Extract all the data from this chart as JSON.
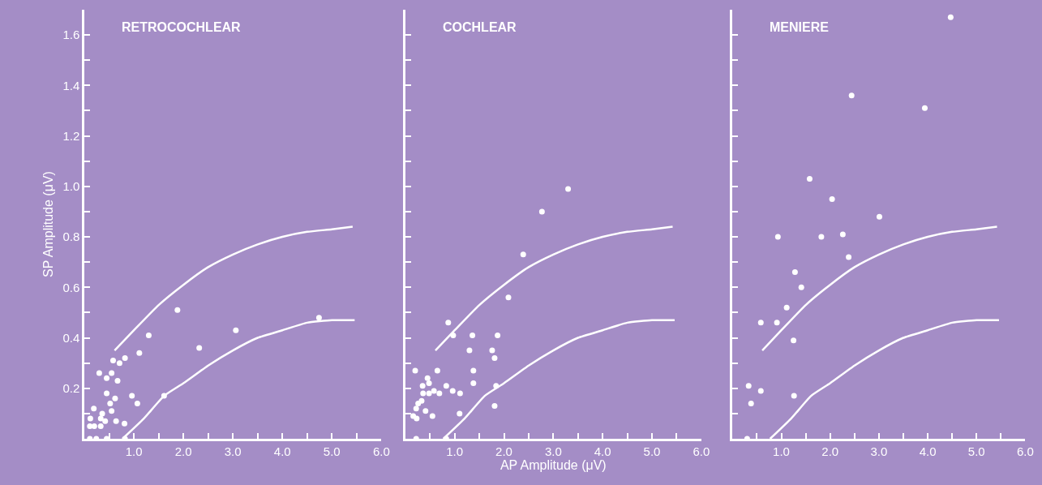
{
  "chart_data": [
    {
      "type": "scatter",
      "title": "RETROCOCHLEAR",
      "ylabel": "SP Amplitude (μV)",
      "xlim": [
        0,
        6.0
      ],
      "ylim": [
        0,
        1.7
      ],
      "grid": false,
      "xticks": [
        {
          "value": 0.5,
          "label": null
        },
        {
          "value": 1.0,
          "label": "1.0"
        },
        {
          "value": 1.5,
          "label": null
        },
        {
          "value": 2.0,
          "label": "2.0"
        },
        {
          "value": 2.5,
          "label": null
        },
        {
          "value": 3.0,
          "label": "3.0"
        },
        {
          "value": 3.5,
          "label": null
        },
        {
          "value": 4.0,
          "label": "4.0"
        },
        {
          "value": 4.5,
          "label": null
        },
        {
          "value": 5.0,
          "label": "5.0"
        },
        {
          "value": 5.5,
          "label": null
        },
        {
          "value": 6.0,
          "label": "6.0"
        }
      ],
      "yticks": [
        {
          "value": 0.1,
          "label": null
        },
        0.2,
        {
          "value": 0.3,
          "label": null
        },
        0.4,
        {
          "value": 0.5,
          "label": null
        },
        0.6,
        {
          "value": 0.7,
          "label": null
        },
        0.8,
        {
          "value": 0.9,
          "label": null
        },
        {
          "value": 1.0,
          "label": "1.0"
        },
        {
          "value": 1.1,
          "label": null
        },
        1.2,
        {
          "value": 1.3,
          "label": null
        },
        1.4,
        {
          "value": 1.5,
          "label": null
        },
        1.6
      ],
      "series": [
        {
          "marker": "circle",
          "color": "#ffffff",
          "x": [
            0.11,
            0.24,
            0.45,
            0.12,
            0.11,
            0.2,
            0.19,
            0.33,
            0.33,
            0.36,
            0.42,
            0.45,
            0.3,
            0.52,
            0.55,
            0.45,
            0.55,
            0.58,
            0.62,
            0.64,
            0.67,
            0.71,
            0.82,
            0.81,
            0.82,
            0.96,
            1.07,
            1.11,
            1.3,
            1.61,
            1.88,
            2.32,
            3.06,
            4.74
          ],
          "values": [
            0,
            0,
            0,
            0.08,
            0.05,
            0.05,
            0.12,
            0.05,
            0.08,
            0.1,
            0.07,
            0.18,
            0.26,
            0.14,
            0.11,
            0.24,
            0.26,
            0.31,
            0.16,
            0.07,
            0.23,
            0.3,
            0.32,
            0.06,
            0.0,
            0.17,
            0.14,
            0.34,
            0.41,
            0.17,
            0.51,
            0.36,
            0.43,
            0.48
          ]
        },
        {
          "type": "line",
          "color": "#ffffff",
          "x": [
            0.61,
            1.0,
            1.5,
            2.0,
            2.5,
            3.0,
            3.5,
            4.0,
            4.5,
            5.0,
            5.42
          ],
          "values": [
            0.35,
            0.43,
            0.53,
            0.61,
            0.68,
            0.73,
            0.77,
            0.8,
            0.82,
            0.83,
            0.84
          ]
        },
        {
          "type": "line",
          "color": "#ffffff",
          "x": [
            0.77,
            1.2,
            1.61,
            2.0,
            2.5,
            3.0,
            3.5,
            4.0,
            4.5,
            5.0,
            5.46
          ],
          "values": [
            0,
            0.08,
            0.17,
            0.22,
            0.29,
            0.35,
            0.4,
            0.43,
            0.46,
            0.47,
            0.47
          ]
        }
      ]
    },
    {
      "type": "scatter",
      "title": "COCHLEAR",
      "xlabel": "AP Amplitude (μV)",
      "xlim": [
        0,
        6.0
      ],
      "ylim": [
        0,
        1.7
      ],
      "grid": false,
      "tick_labels": "x",
      "xticks": [
        {
          "value": 0.5,
          "label": null
        },
        {
          "value": 1.0,
          "label": "1.0"
        },
        {
          "value": 1.5,
          "label": null
        },
        {
          "value": 2.0,
          "label": "2.0"
        },
        {
          "value": 2.5,
          "label": null
        },
        {
          "value": 3.0,
          "label": "3.0"
        },
        {
          "value": 3.5,
          "label": null
        },
        {
          "value": 4.0,
          "label": "4.0"
        },
        {
          "value": 4.5,
          "label": null
        },
        {
          "value": 5.0,
          "label": "5.0"
        },
        {
          "value": 5.5,
          "label": null
        },
        {
          "value": 6.0,
          "label": "6.0"
        }
      ],
      "yticks": [
        {
          "value": 0.1,
          "label": null
        },
        {
          "value": 0.2,
          "label": null
        },
        {
          "value": 0.3,
          "label": null
        },
        {
          "value": 0.4,
          "label": null
        },
        {
          "value": 0.5,
          "label": null
        },
        {
          "value": 0.6,
          "label": null
        },
        {
          "value": 0.7,
          "label": null
        },
        {
          "value": 0.8,
          "label": null
        },
        {
          "value": 0.9,
          "label": null
        },
        {
          "value": 1.0,
          "label": null
        },
        {
          "value": 1.1,
          "label": null
        },
        {
          "value": 1.2,
          "label": null
        },
        {
          "value": 1.3,
          "label": null
        },
        {
          "value": 1.4,
          "label": null
        },
        {
          "value": 1.5,
          "label": null
        },
        {
          "value": 1.6,
          "label": null
        }
      ],
      "series": [
        {
          "marker": "circle",
          "color": "#ffffff",
          "x": [
            0.22,
            0.83,
            0.2,
            0.16,
            0.23,
            0.22,
            0.26,
            0.33,
            0.35,
            0.41,
            0.36,
            0.45,
            0.48,
            0.48,
            0.55,
            0.58,
            0.65,
            0.69,
            0.83,
            0.87,
            0.96,
            0.97,
            1.11,
            1.1,
            1.3,
            1.36,
            1.38,
            1.38,
            1.76,
            1.81,
            1.87,
            1.84,
            1.81,
            2.09,
            2.39,
            2.77,
            3.3
          ],
          "values": [
            0,
            0,
            0.27,
            0.09,
            0.08,
            0.12,
            0.14,
            0.15,
            0.21,
            0.11,
            0.18,
            0.24,
            0.22,
            0.18,
            0.09,
            0.19,
            0.27,
            0.18,
            0.21,
            0.46,
            0.19,
            0.41,
            0.18,
            0.1,
            0.35,
            0.41,
            0.27,
            0.22,
            0.35,
            0.32,
            0.41,
            0.21,
            0.13,
            0.56,
            0.73,
            0.9,
            0.99
          ]
        },
        {
          "type": "line",
          "color": "#ffffff",
          "x": [
            0.61,
            1.0,
            1.5,
            2.0,
            2.5,
            3.0,
            3.5,
            4.0,
            4.5,
            5.0,
            5.42
          ],
          "values": [
            0.35,
            0.43,
            0.53,
            0.61,
            0.68,
            0.73,
            0.77,
            0.8,
            0.82,
            0.83,
            0.84
          ]
        },
        {
          "type": "line",
          "color": "#ffffff",
          "x": [
            0.77,
            1.2,
            1.61,
            2.0,
            2.5,
            3.0,
            3.5,
            4.0,
            4.5,
            5.0,
            5.46
          ],
          "values": [
            0,
            0.08,
            0.17,
            0.22,
            0.29,
            0.35,
            0.4,
            0.43,
            0.46,
            0.47,
            0.47
          ]
        }
      ]
    },
    {
      "type": "scatter",
      "title": "MENIERE",
      "xlim": [
        0,
        6.0
      ],
      "ylim": [
        0,
        1.7
      ],
      "grid": false,
      "tick_labels": "x",
      "xticks": [
        {
          "value": 0.5,
          "label": null
        },
        {
          "value": 1.0,
          "label": "1.0"
        },
        {
          "value": 1.5,
          "label": null
        },
        {
          "value": 2.0,
          "label": "2.0"
        },
        {
          "value": 2.5,
          "label": null
        },
        {
          "value": 3.0,
          "label": "3.0"
        },
        {
          "value": 3.5,
          "label": null
        },
        {
          "value": 4.0,
          "label": "4.0"
        },
        {
          "value": 4.5,
          "label": null
        },
        {
          "value": 5.0,
          "label": "5.0"
        },
        {
          "value": 5.5,
          "label": null
        },
        {
          "value": 6.0,
          "label": "6.0"
        }
      ],
      "yticks": [
        {
          "value": 0.1,
          "label": null
        },
        {
          "value": 0.2,
          "label": null
        },
        {
          "value": 0.3,
          "label": null
        },
        {
          "value": 0.4,
          "label": null
        },
        {
          "value": 0.5,
          "label": null
        },
        {
          "value": 0.6,
          "label": null
        },
        {
          "value": 0.7,
          "label": null
        },
        {
          "value": 0.8,
          "label": null
        },
        {
          "value": 0.9,
          "label": null
        },
        {
          "value": 1.0,
          "label": null
        },
        {
          "value": 1.1,
          "label": null
        },
        {
          "value": 1.2,
          "label": null
        },
        {
          "value": 1.3,
          "label": null
        },
        {
          "value": 1.4,
          "label": null
        },
        {
          "value": 1.5,
          "label": null
        },
        {
          "value": 1.6,
          "label": null
        }
      ],
      "series": [
        {
          "marker": "circle",
          "color": "#ffffff",
          "x": [
            0.3,
            0.33,
            0.38,
            0.58,
            0.58,
            0.91,
            0.93,
            1.11,
            1.25,
            1.26,
            1.28,
            1.41,
            1.58,
            1.82,
            2.04,
            2.26,
            2.38,
            2.44,
            3.01,
            3.94,
            4.47
          ],
          "values": [
            0,
            0.21,
            0.14,
            0.19,
            0.46,
            0.46,
            0.8,
            0.52,
            0.39,
            0.17,
            0.66,
            0.6,
            1.03,
            0.8,
            0.95,
            0.81,
            0.72,
            1.36,
            0.88,
            1.31,
            1.67
          ]
        },
        {
          "type": "line",
          "color": "#ffffff",
          "x": [
            0.61,
            1.0,
            1.5,
            2.0,
            2.5,
            3.0,
            3.5,
            4.0,
            4.5,
            5.0,
            5.42
          ],
          "values": [
            0.35,
            0.43,
            0.53,
            0.61,
            0.68,
            0.73,
            0.77,
            0.8,
            0.82,
            0.83,
            0.84
          ]
        },
        {
          "type": "line",
          "color": "#ffffff",
          "x": [
            0.77,
            1.2,
            1.61,
            2.0,
            2.5,
            3.0,
            3.5,
            4.0,
            4.5,
            5.0,
            5.46
          ],
          "values": [
            0,
            0.08,
            0.17,
            0.22,
            0.29,
            0.35,
            0.4,
            0.43,
            0.46,
            0.47,
            0.47
          ]
        }
      ]
    }
  ]
}
